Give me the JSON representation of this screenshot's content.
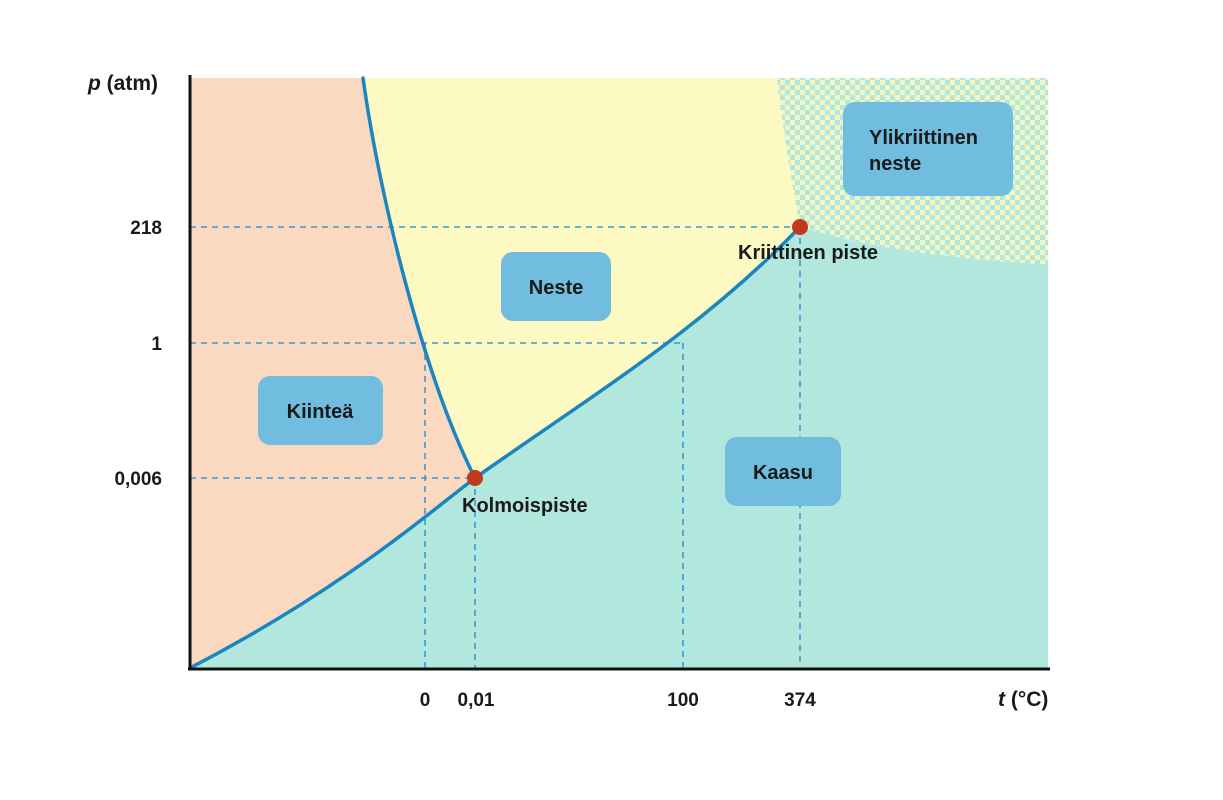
{
  "colors": {
    "solid": "#fbd9c0",
    "liquid": "#fcf9c2",
    "gas": "#b2e7de",
    "supercritical_a": "#b2e7de",
    "supercritical_b": "#f4f6c2",
    "curve": "#1a86bd",
    "guide": "#3b9ad6",
    "point": "#c0391d",
    "box": "#71bddf",
    "axis": "#111111",
    "text": "#1a1a1a"
  },
  "axes": {
    "y_title_var": "p",
    "y_title_unit": " (atm)",
    "x_title_var": "t",
    "x_title_unit": " (°C)",
    "y_ticks": [
      "218",
      "1",
      "0,006"
    ],
    "x_ticks": [
      "0",
      "0,01",
      "100",
      "374"
    ]
  },
  "regions": {
    "solid": "Kiinteä",
    "liquid": "Neste",
    "gas": "Kaasu",
    "supercritical_line1": "Ylikriittinen",
    "supercritical_line2": "neste"
  },
  "points": {
    "triple": "Kolmoispiste",
    "critical": "Kriittinen piste"
  }
}
